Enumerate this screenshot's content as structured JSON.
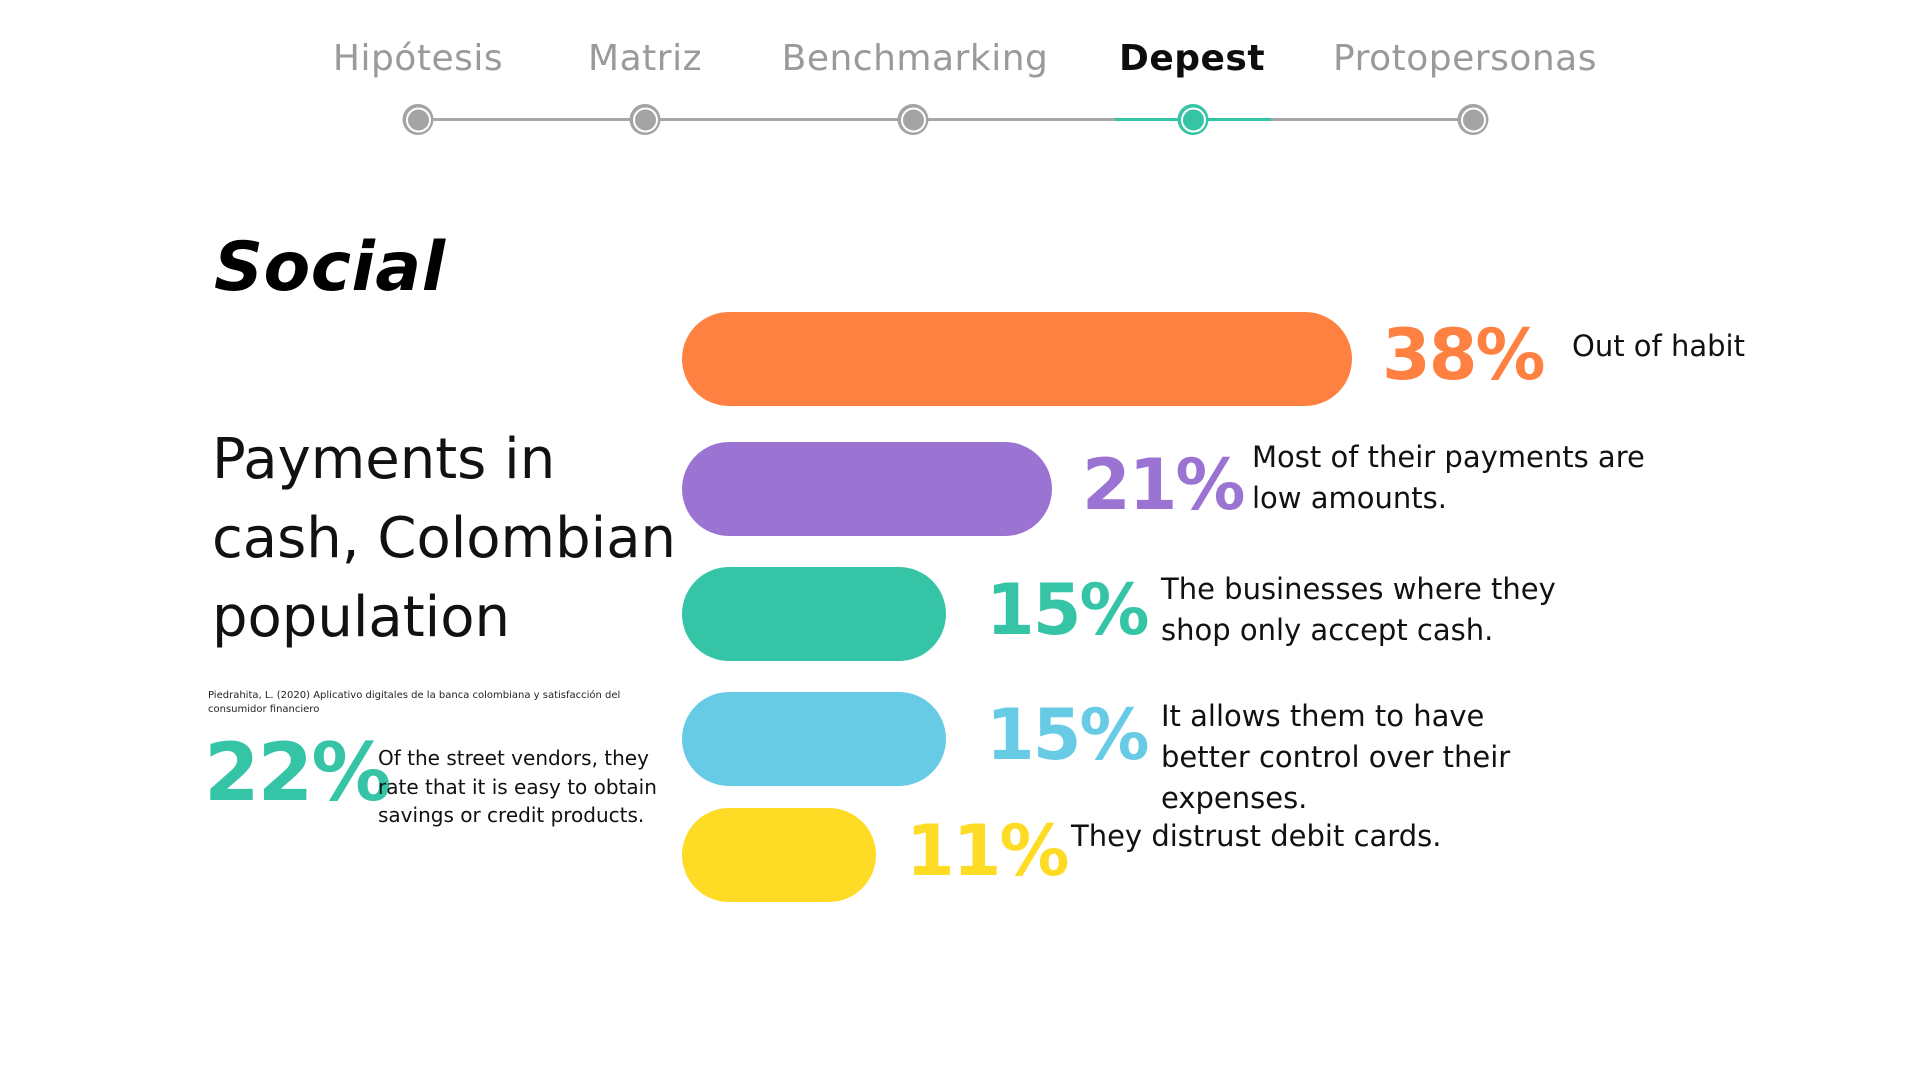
{
  "nav": {
    "steps": [
      {
        "label": "Hipótesis",
        "active": false
      },
      {
        "label": "Matriz",
        "active": false
      },
      {
        "label": "Benchmarking",
        "active": false
      },
      {
        "label": "Depest",
        "active": true
      },
      {
        "label": "Protopersonas",
        "active": false
      }
    ],
    "colors": {
      "inactive": "#a4a4a4",
      "active": "#36c4a6"
    }
  },
  "section_title": "Social",
  "heading": "Payments in cash, Colombian population",
  "source": "Piedrahita, L. (2020) Aplicativo digitales de la banca colombiana y satisfacción del consumidor financiero",
  "highlight": {
    "value": "22%",
    "description": "Of the street vendors, they rate that it is easy to obtain savings or credit products.",
    "color": "#36c4a6"
  },
  "chart_data": {
    "type": "bar",
    "orientation": "horizontal",
    "categories": [
      "Out of habit",
      "Most of their payments are low amounts.",
      "The businesses where they shop only accept cash.",
      "It allows them to have better control over their expenses.",
      "They distrust debit cards."
    ],
    "values": [
      38,
      21,
      15,
      15,
      11
    ],
    "value_labels": [
      "38%",
      "21%",
      "15%",
      "15%",
      "11%"
    ],
    "colors": [
      "#ff8142",
      "#9b74d3",
      "#36c4a6",
      "#68cbe5",
      "#fedb25"
    ],
    "unit": "%"
  }
}
